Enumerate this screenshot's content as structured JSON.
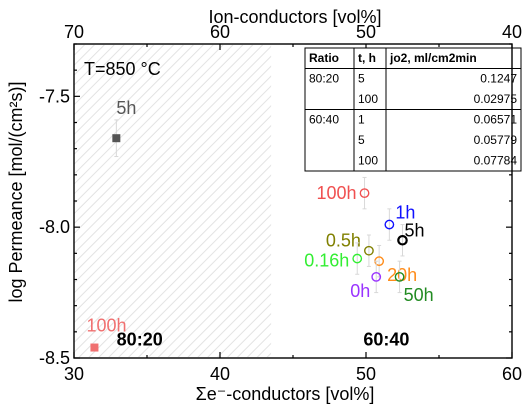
{
  "chart_data": {
    "type": "scatter",
    "xlabel": "Σe⁻-conductors [vol%]",
    "x2label": "Ion-conductors [vol%]",
    "ylabel": "log Permeance [mol/(cm²s)]",
    "xlim": [
      30,
      60
    ],
    "ylim": [
      -8.5,
      -7.3
    ],
    "x_ticks": [
      "30",
      "40",
      "50",
      "60"
    ],
    "x2_ticks": [
      "70",
      "60",
      "50",
      "40"
    ],
    "y_ticks": [
      "-7.5",
      "-8.0",
      "-8.5"
    ],
    "condition_label": "T=850 °C",
    "region_labels": [
      {
        "text": "80:20",
        "x": 34.5,
        "y": -8.43
      },
      {
        "text": "60:40",
        "x": 51.4,
        "y": -8.43
      }
    ],
    "hatched_region_x": [
      30,
      43.5
    ],
    "series": [
      {
        "name": "80:20",
        "marker": "square",
        "points": [
          {
            "label": "5h",
            "x": 32.9,
            "y": -7.66,
            "err": 0.07,
            "color": "#555555"
          },
          {
            "label": "100h",
            "x": 31.4,
            "y": -8.46,
            "err": 0.0,
            "color": "#f07070"
          }
        ]
      },
      {
        "name": "60:40",
        "marker": "circle",
        "points": [
          {
            "label": "100h",
            "x": 49.9,
            "y": -7.87,
            "err": 0.06,
            "color": "#f05050"
          },
          {
            "label": "1h",
            "x": 51.6,
            "y": -7.99,
            "err": 0.06,
            "color": "#1010ff"
          },
          {
            "label": "5h",
            "x": 52.5,
            "y": -8.05,
            "err": 0.06,
            "color": "#000000"
          },
          {
            "label": "0.5h",
            "x": 50.2,
            "y": -8.09,
            "err": 0.06,
            "color": "#808000"
          },
          {
            "label": "0.16h",
            "x": 49.4,
            "y": -8.12,
            "err": 0.06,
            "color": "#33ee33"
          },
          {
            "label": "20h",
            "x": 50.9,
            "y": -8.13,
            "err": 0.06,
            "color": "#ff8c1a"
          },
          {
            "label": "0h",
            "x": 50.7,
            "y": -8.19,
            "err": 0.06,
            "color": "#9933ff"
          },
          {
            "label": "50h",
            "x": 52.3,
            "y": -8.19,
            "err": 0.06,
            "color": "#228b22"
          }
        ]
      }
    ],
    "table": {
      "headers": [
        "Ratio",
        "t, h",
        "jo2, ml/cm2min"
      ],
      "rows": [
        [
          "80:20",
          "5",
          "0.1247"
        ],
        [
          "",
          "100",
          "0.02975"
        ],
        [
          "60:40",
          "1",
          "0.06571"
        ],
        [
          "",
          "5",
          "0.05779"
        ],
        [
          "",
          "100",
          "0.07784"
        ]
      ]
    }
  }
}
